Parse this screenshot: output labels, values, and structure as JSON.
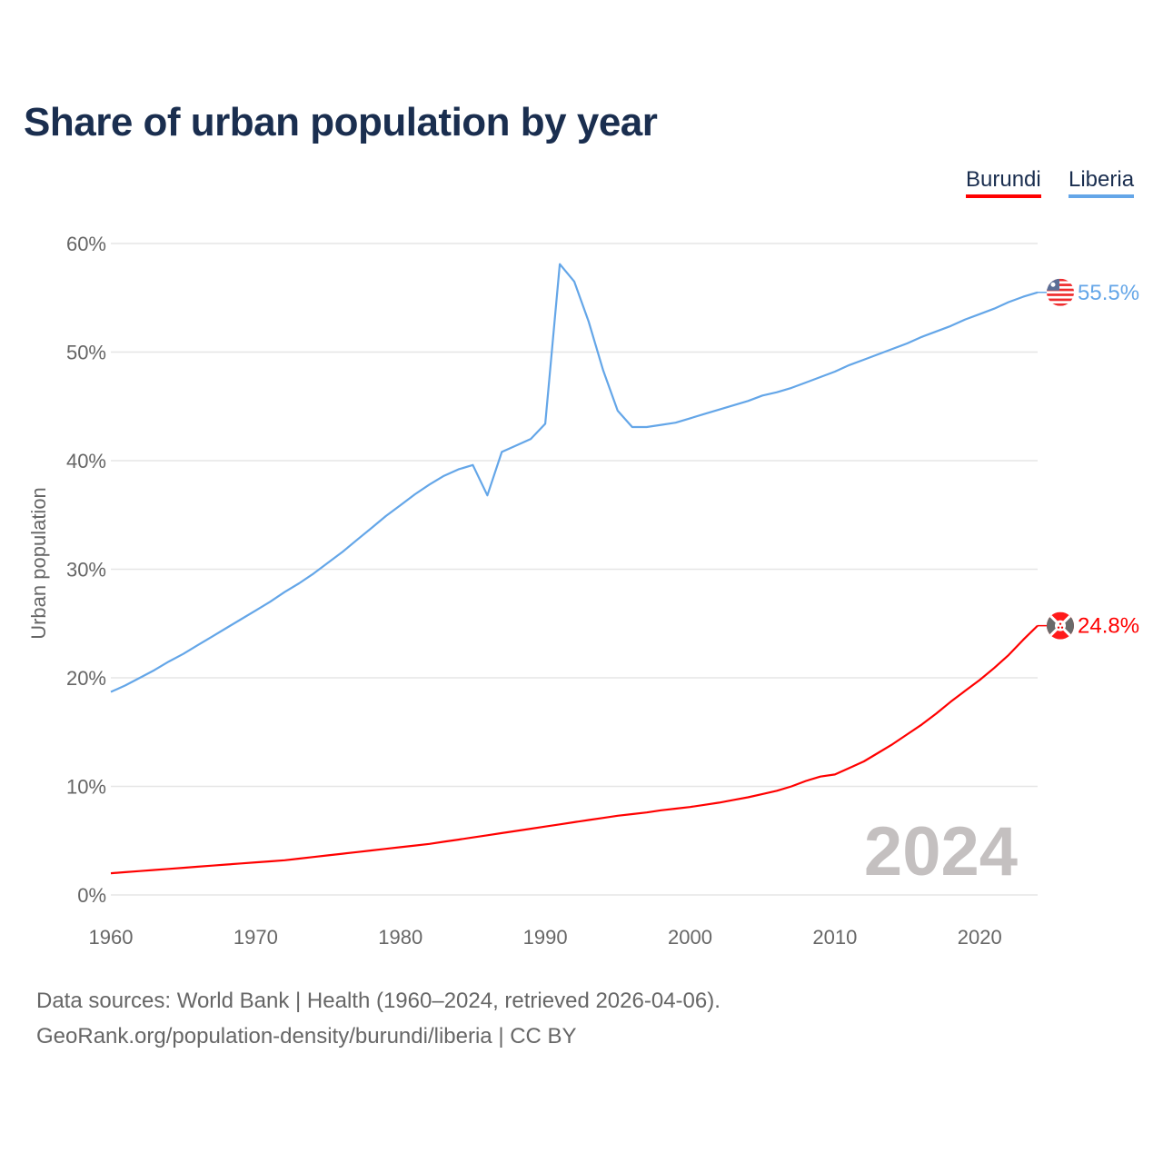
{
  "chart_data": {
    "type": "line",
    "title": "Share of urban population by year",
    "xlabel": "",
    "ylabel": "Urban population",
    "xlim": [
      1960,
      2024
    ],
    "ylim": [
      0,
      60
    ],
    "grid": true,
    "legend_position": "top-right",
    "yticks": [
      "0%",
      "10%",
      "20%",
      "30%",
      "40%",
      "50%",
      "60%"
    ],
    "xticks": [
      "1960",
      "1970",
      "1980",
      "1990",
      "2000",
      "2010",
      "2020"
    ],
    "watermark_year": "2024",
    "x": [
      1960,
      1961,
      1962,
      1963,
      1964,
      1965,
      1966,
      1967,
      1968,
      1969,
      1970,
      1971,
      1972,
      1973,
      1974,
      1975,
      1976,
      1977,
      1978,
      1979,
      1980,
      1981,
      1982,
      1983,
      1984,
      1985,
      1986,
      1987,
      1988,
      1989,
      1990,
      1991,
      1992,
      1993,
      1994,
      1995,
      1996,
      1997,
      1998,
      1999,
      2000,
      2001,
      2002,
      2003,
      2004,
      2005,
      2006,
      2007,
      2008,
      2009,
      2010,
      2011,
      2012,
      2013,
      2014,
      2015,
      2016,
      2017,
      2018,
      2019,
      2020,
      2021,
      2022,
      2023,
      2024
    ],
    "series": [
      {
        "name": "Burundi",
        "color": "#ff0000",
        "end_label": "24.8%",
        "flag": "burundi-flag",
        "values": [
          2.0,
          2.1,
          2.2,
          2.3,
          2.4,
          2.5,
          2.6,
          2.7,
          2.8,
          2.9,
          3.0,
          3.1,
          3.2,
          3.35,
          3.5,
          3.65,
          3.8,
          3.95,
          4.1,
          4.25,
          4.4,
          4.55,
          4.7,
          4.9,
          5.1,
          5.3,
          5.5,
          5.7,
          5.9,
          6.1,
          6.3,
          6.5,
          6.7,
          6.9,
          7.1,
          7.3,
          7.45,
          7.6,
          7.8,
          7.95,
          8.1,
          8.3,
          8.5,
          8.75,
          9.0,
          9.3,
          9.6,
          10.0,
          10.5,
          10.9,
          11.1,
          11.7,
          12.3,
          13.1,
          13.9,
          14.8,
          15.7,
          16.7,
          17.8,
          18.8,
          19.8,
          20.9,
          22.1,
          23.5,
          24.8
        ]
      },
      {
        "name": "Liberia",
        "color": "#64a6e8",
        "end_label": "55.5%",
        "flag": "liberia-flag",
        "values": [
          18.7,
          19.3,
          20.0,
          20.7,
          21.5,
          22.2,
          23.0,
          23.8,
          24.6,
          25.4,
          26.2,
          27.0,
          27.9,
          28.7,
          29.6,
          30.6,
          31.6,
          32.7,
          33.8,
          34.9,
          35.9,
          36.9,
          37.8,
          38.6,
          39.2,
          39.6,
          36.8,
          40.8,
          41.4,
          42.0,
          43.4,
          58.1,
          56.5,
          52.8,
          48.3,
          44.6,
          43.1,
          43.1,
          43.3,
          43.5,
          43.9,
          44.3,
          44.7,
          45.1,
          45.5,
          46.0,
          46.3,
          46.7,
          47.2,
          47.7,
          48.2,
          48.8,
          49.3,
          49.8,
          50.3,
          50.8,
          51.4,
          51.9,
          52.4,
          53.0,
          53.5,
          54.0,
          54.6,
          55.1,
          55.5
        ]
      }
    ]
  },
  "footer": {
    "line1": "Data sources: World Bank | Health (1960–2024, retrieved 2026-04-06).",
    "line2": "GeoRank.org/population-density/burundi/liberia | CC BY"
  }
}
